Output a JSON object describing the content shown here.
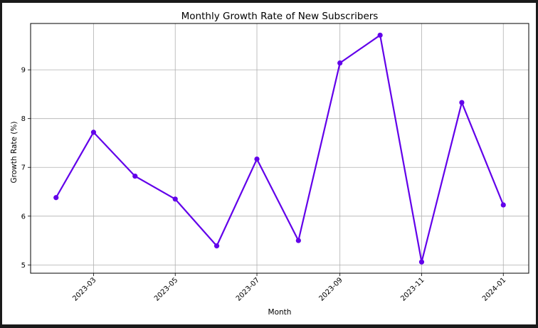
{
  "chart_data": {
    "type": "line",
    "title": "Monthly Growth Rate of New Subscribers",
    "xlabel": "Month",
    "ylabel": "Growth Rate (%)",
    "x": [
      "2023-02",
      "2023-03",
      "2023-04",
      "2023-05",
      "2023-06",
      "2023-07",
      "2023-08",
      "2023-09",
      "2023-10",
      "2023-11",
      "2023-12",
      "2024-01"
    ],
    "series": [
      {
        "values": [
          6.38,
          7.72,
          6.82,
          6.35,
          5.39,
          7.17,
          5.5,
          9.14,
          9.71,
          5.06,
          8.33,
          6.23
        ],
        "color": "#6200EA"
      }
    ],
    "x_ticks": [
      "2023-03",
      "2023-05",
      "2023-07",
      "2023-09",
      "2023-11",
      "2024-01"
    ],
    "y_ticks": [
      5,
      6,
      7,
      8,
      9
    ],
    "ylim": [
      4.83,
      9.95
    ],
    "xlim": [
      "2023-01-13",
      "2024-01-20"
    ],
    "grid": true,
    "marker": "circle"
  }
}
